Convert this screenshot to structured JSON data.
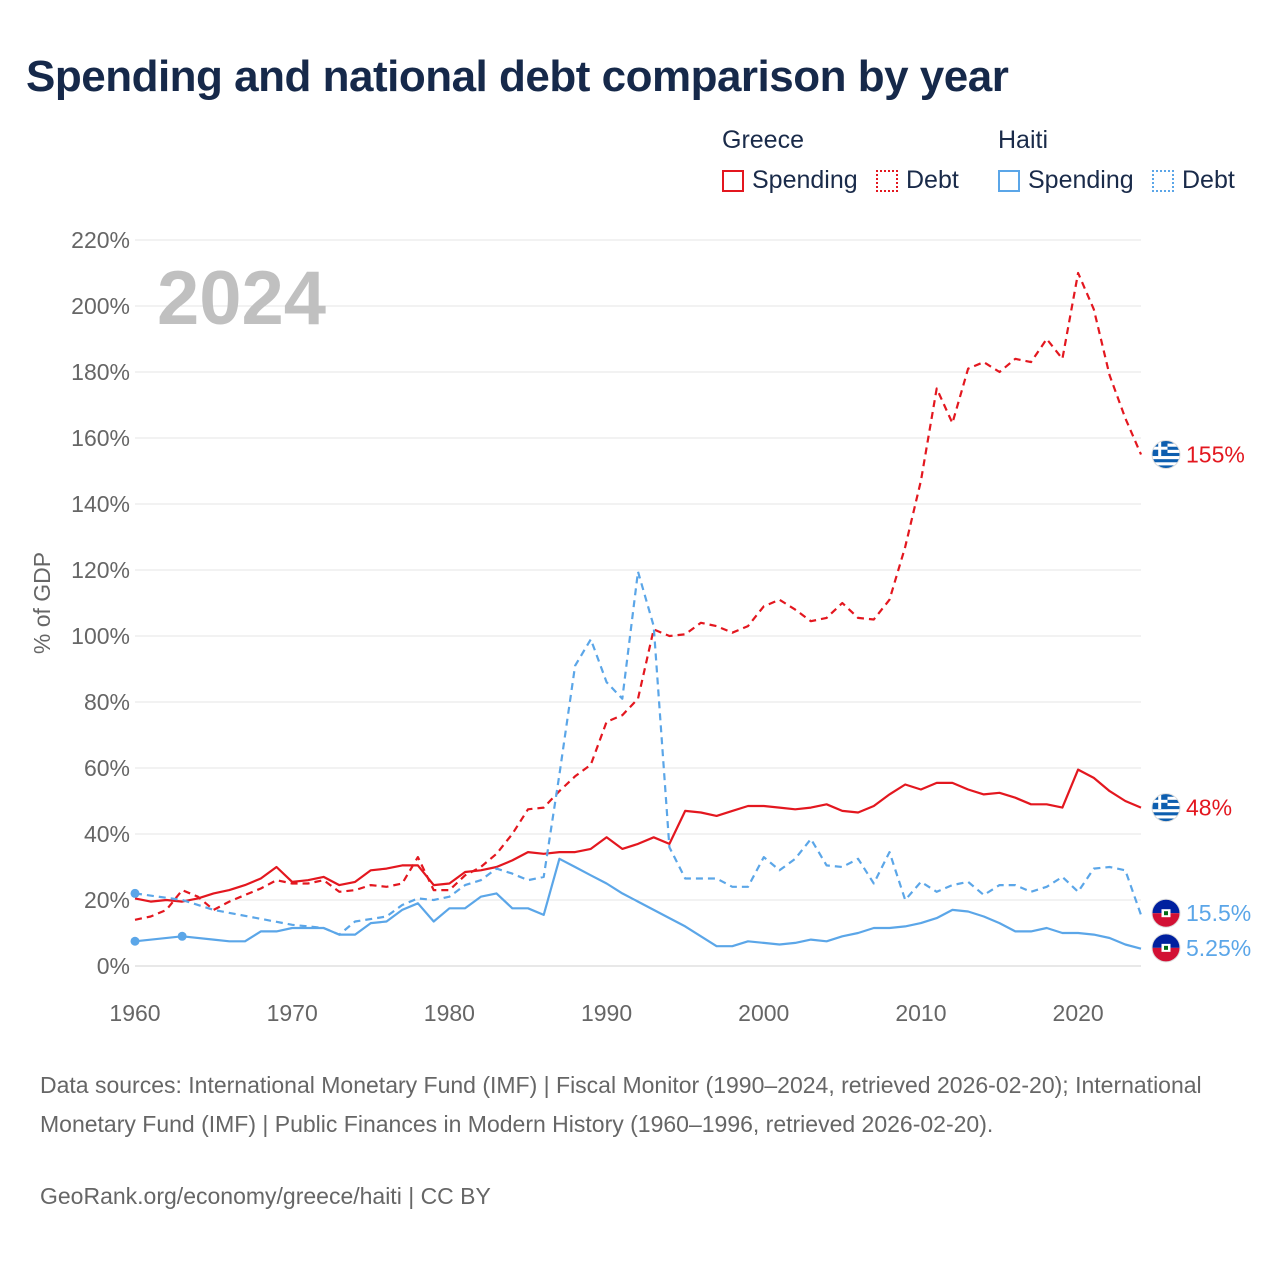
{
  "title": "Spending and national debt comparison by year",
  "legend": {
    "groups": [
      {
        "name": "Greece",
        "items": [
          {
            "label": "Spending",
            "style": "solid",
            "color": "#e3171f"
          },
          {
            "label": "Debt",
            "style": "dotted",
            "color": "#e3171f"
          }
        ]
      },
      {
        "name": "Haiti",
        "items": [
          {
            "label": "Spending",
            "style": "solid",
            "color": "#5ba6e8"
          },
          {
            "label": "Debt",
            "style": "dotted",
            "color": "#5ba6e8"
          }
        ]
      }
    ]
  },
  "sources": "Data sources: International Monetary Fund (IMF) | Fiscal Monitor (1990–2024, retrieved 2026-02-20); International Monetary Fund (IMF) | Public Finances in Modern History (1960–1996, retrieved 2026-02-20).",
  "credit": "GeoRank.org/economy/greece/haiti | CC BY",
  "chart_data": {
    "type": "line",
    "title": "Spending and national debt comparison by year",
    "year_label": "2024",
    "xlabel": "",
    "ylabel": "% of GDP",
    "xlim": [
      1960,
      2024
    ],
    "ylim": [
      0,
      220
    ],
    "x_ticks": [
      1960,
      1970,
      1980,
      1990,
      2000,
      2010,
      2020
    ],
    "y_ticks": [
      0,
      20,
      40,
      60,
      80,
      100,
      120,
      140,
      160,
      180,
      200,
      220
    ],
    "y_tick_labels": [
      "0%",
      "20%",
      "40%",
      "60%",
      "80%",
      "100%",
      "120%",
      "140%",
      "160%",
      "180%",
      "200%",
      "220%"
    ],
    "series": [
      {
        "name": "Greece Debt",
        "country": "Greece",
        "metric": "Debt",
        "color": "#e3171f",
        "dash": "dashed",
        "end_label": "155%",
        "x": [
          1960,
          1961,
          1962,
          1963,
          1964,
          1965,
          1966,
          1967,
          1968,
          1969,
          1970,
          1971,
          1972,
          1973,
          1974,
          1975,
          1976,
          1977,
          1978,
          1979,
          1980,
          1981,
          1982,
          1983,
          1984,
          1985,
          1986,
          1987,
          1988,
          1989,
          1990,
          1991,
          1992,
          1993,
          1994,
          1995,
          1996,
          1997,
          1998,
          1999,
          2000,
          2001,
          2002,
          2003,
          2004,
          2005,
          2006,
          2007,
          2008,
          2009,
          2010,
          2011,
          2012,
          2013,
          2014,
          2015,
          2016,
          2017,
          2018,
          2019,
          2020,
          2021,
          2022,
          2023,
          2024
        ],
        "y": [
          14,
          15,
          17,
          23,
          21,
          17,
          19.5,
          21.5,
          23.5,
          26,
          25,
          25,
          26,
          22.5,
          23,
          24.5,
          24,
          25,
          33,
          23,
          23,
          27.5,
          30,
          34,
          40,
          47.5,
          48,
          53,
          57.5,
          61,
          74,
          76,
          81,
          102,
          100,
          100.5,
          104,
          103,
          101,
          103,
          109,
          111,
          108,
          104.5,
          105.5,
          110,
          105.5,
          105,
          111,
          127,
          147,
          175,
          164.5,
          181,
          183,
          180,
          184,
          183,
          190,
          184,
          210,
          199,
          179,
          166,
          155
        ]
      },
      {
        "name": "Greece Spending",
        "country": "Greece",
        "metric": "Spending",
        "color": "#e3171f",
        "dash": "solid",
        "end_label": "48%",
        "x": [
          1960,
          1961,
          1962,
          1963,
          1964,
          1965,
          1966,
          1967,
          1968,
          1969,
          1970,
          1971,
          1972,
          1973,
          1974,
          1975,
          1976,
          1977,
          1978,
          1979,
          1980,
          1981,
          1982,
          1983,
          1984,
          1985,
          1986,
          1987,
          1988,
          1989,
          1990,
          1991,
          1992,
          1993,
          1994,
          1995,
          1996,
          1997,
          1998,
          1999,
          2000,
          2001,
          2002,
          2003,
          2004,
          2005,
          2006,
          2007,
          2008,
          2009,
          2010,
          2011,
          2012,
          2013,
          2014,
          2015,
          2016,
          2017,
          2018,
          2019,
          2020,
          2021,
          2022,
          2023,
          2024
        ],
        "y": [
          20.5,
          19.5,
          20,
          19.5,
          20.5,
          22,
          23,
          24.5,
          26.5,
          30,
          25.5,
          26,
          27,
          24.5,
          25.5,
          29,
          29.5,
          30.5,
          30.5,
          24.5,
          25,
          28.5,
          29,
          30,
          32,
          34.5,
          34,
          34.5,
          34.5,
          35.5,
          39,
          35.5,
          37,
          39,
          37,
          47,
          46.5,
          45.5,
          47,
          48.5,
          48.5,
          48,
          47.5,
          48,
          49,
          47,
          46.5,
          48.5,
          52,
          55,
          53.5,
          55.5,
          55.5,
          53.5,
          52,
          52.5,
          51,
          49,
          49,
          48,
          59.5,
          57,
          53,
          50,
          48
        ]
      },
      {
        "name": "Haiti Debt",
        "country": "Haiti",
        "metric": "Debt",
        "color": "#5ba6e8",
        "dash": "dashed",
        "end_label": "15.5%",
        "x": [
          1960,
          1963,
          1965,
          1970,
          1972,
          1973,
          1974,
          1976,
          1977,
          1978,
          1979,
          1980,
          1981,
          1982,
          1983,
          1984,
          1985,
          1986,
          1987,
          1988,
          1989,
          1990,
          1991,
          1992,
          1993,
          1994,
          1995,
          1996,
          1997,
          1998,
          1999,
          2000,
          2001,
          2002,
          2003,
          2004,
          2005,
          2006,
          2007,
          2008,
          2009,
          2010,
          2011,
          2012,
          2013,
          2014,
          2015,
          2016,
          2017,
          2018,
          2019,
          2020,
          2021,
          2022,
          2023,
          2024
        ],
        "y": [
          22,
          20,
          17,
          12.5,
          11.5,
          9.5,
          13.5,
          15,
          18.5,
          20.5,
          20,
          21,
          24.5,
          26,
          29.5,
          28,
          26,
          27,
          58,
          91,
          99,
          86,
          81,
          119.5,
          103,
          36,
          26.5,
          26.5,
          26.5,
          24,
          24,
          33,
          29,
          32.5,
          38.5,
          30.5,
          30,
          32.5,
          25,
          34.5,
          20,
          25.5,
          22.5,
          24.5,
          25.5,
          21.5,
          24.5,
          24.5,
          22.5,
          24,
          27,
          22.5,
          29.5,
          30,
          29,
          15.5
        ]
      },
      {
        "name": "Haiti Spending",
        "country": "Haiti",
        "metric": "Spending",
        "color": "#5ba6e8",
        "dash": "solid",
        "end_label": "5.25%",
        "x": [
          1960,
          1963,
          1965,
          1966,
          1967,
          1968,
          1969,
          1970,
          1971,
          1972,
          1973,
          1974,
          1975,
          1976,
          1977,
          1978,
          1979,
          1980,
          1981,
          1982,
          1983,
          1984,
          1985,
          1986,
          1987,
          1988,
          1989,
          1990,
          1991,
          1992,
          1993,
          1994,
          1995,
          1996,
          1997,
          1998,
          1999,
          2000,
          2001,
          2002,
          2003,
          2004,
          2005,
          2006,
          2007,
          2008,
          2009,
          2010,
          2011,
          2012,
          2013,
          2014,
          2015,
          2016,
          2017,
          2018,
          2019,
          2020,
          2021,
          2022,
          2023,
          2024
        ],
        "y": [
          7.5,
          9,
          8,
          7.5,
          7.5,
          10.5,
          10.5,
          11.5,
          11.5,
          11.5,
          9.5,
          9.5,
          13,
          13.5,
          17,
          19,
          13.5,
          17.5,
          17.5,
          21,
          22,
          17.5,
          17.5,
          15.5,
          32.5,
          30,
          27.5,
          25,
          22,
          19.5,
          17,
          14.5,
          12,
          9,
          6,
          6,
          7.5,
          7,
          6.5,
          7,
          8,
          7.5,
          9,
          10,
          11.5,
          11.5,
          12,
          13,
          14.5,
          17,
          16.5,
          15,
          13,
          10.5,
          10.5,
          11.5,
          10,
          10,
          9.5,
          8.5,
          6.5,
          5.25
        ]
      }
    ],
    "start_dots": [
      {
        "series": "Haiti Debt",
        "x": 1960,
        "y": 22
      },
      {
        "series": "Haiti Spending",
        "x": 1960,
        "y": 7.5
      },
      {
        "series": "Haiti Spending",
        "x": 1963,
        "y": 9
      }
    ]
  }
}
